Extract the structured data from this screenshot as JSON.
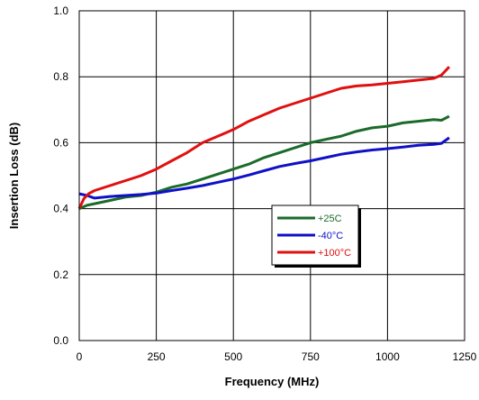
{
  "chart_data": {
    "type": "line",
    "xlabel": "Frequency (MHz)",
    "ylabel": "Insertion Loss (dB)",
    "xlim": [
      0,
      1250
    ],
    "ylim": [
      0.0,
      1.0
    ],
    "x_ticks": [
      "0",
      "250",
      "500",
      "750",
      "1000",
      "1250"
    ],
    "y_ticks": [
      "0.0",
      "0.2",
      "0.4",
      "0.6",
      "0.8",
      "1.0"
    ],
    "grid": true,
    "legend_position": "center-right",
    "series": [
      {
        "name": "+25C",
        "color": "#1a6b2a",
        "x": [
          0,
          25,
          50,
          100,
          150,
          200,
          250,
          300,
          350,
          400,
          450,
          500,
          550,
          600,
          650,
          700,
          750,
          800,
          850,
          900,
          950,
          1000,
          1050,
          1100,
          1150,
          1175,
          1200
        ],
        "y": [
          0.4,
          0.41,
          0.415,
          0.425,
          0.435,
          0.44,
          0.45,
          0.465,
          0.475,
          0.49,
          0.505,
          0.52,
          0.535,
          0.555,
          0.57,
          0.585,
          0.6,
          0.61,
          0.62,
          0.635,
          0.645,
          0.65,
          0.66,
          0.665,
          0.67,
          0.668,
          0.68
        ]
      },
      {
        "name": "-40°C",
        "color": "#1010c8",
        "x": [
          0,
          25,
          50,
          100,
          150,
          200,
          250,
          300,
          350,
          400,
          450,
          500,
          550,
          600,
          650,
          700,
          750,
          800,
          850,
          900,
          950,
          1000,
          1050,
          1100,
          1150,
          1175,
          1200
        ],
        "y": [
          0.445,
          0.44,
          0.432,
          0.437,
          0.44,
          0.443,
          0.447,
          0.455,
          0.462,
          0.47,
          0.48,
          0.49,
          0.502,
          0.515,
          0.528,
          0.537,
          0.545,
          0.555,
          0.565,
          0.572,
          0.578,
          0.582,
          0.587,
          0.592,
          0.595,
          0.598,
          0.615
        ]
      },
      {
        "name": "+100°C",
        "color": "#e01010",
        "x": [
          0,
          15,
          30,
          50,
          100,
          150,
          200,
          250,
          300,
          350,
          400,
          450,
          500,
          550,
          600,
          650,
          700,
          750,
          800,
          850,
          900,
          950,
          1000,
          1050,
          1100,
          1150,
          1175,
          1200
        ],
        "y": [
          0.4,
          0.43,
          0.445,
          0.455,
          0.47,
          0.485,
          0.5,
          0.52,
          0.545,
          0.57,
          0.6,
          0.62,
          0.64,
          0.665,
          0.685,
          0.705,
          0.72,
          0.735,
          0.75,
          0.765,
          0.772,
          0.775,
          0.78,
          0.785,
          0.79,
          0.795,
          0.805,
          0.83
        ]
      }
    ]
  }
}
